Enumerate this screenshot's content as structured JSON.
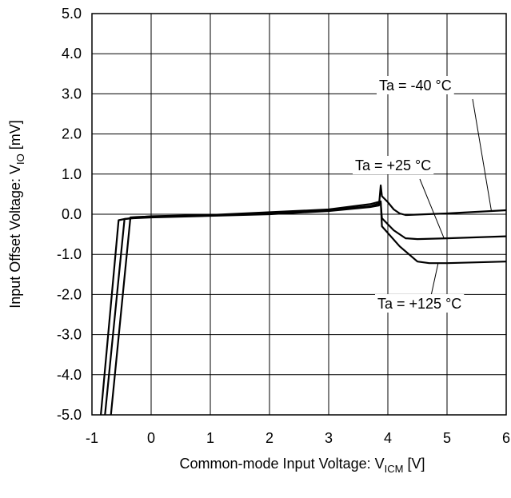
{
  "chart_data": {
    "type": "line",
    "title": "",
    "xlabel": {
      "main": "Common-mode Input Voltage: V",
      "sub": "ICM",
      "unit": " [V]"
    },
    "ylabel": {
      "main": "Input Offset Voltage: V",
      "sub": "IO",
      "unit": " [mV]"
    },
    "xlim": [
      -1,
      6
    ],
    "ylim": [
      -5,
      5
    ],
    "x_ticks": [
      -1,
      0,
      1,
      2,
      3,
      4,
      5,
      6
    ],
    "x_tick_labels": [
      "-1",
      "0",
      "1",
      "2",
      "3",
      "4",
      "5",
      "6"
    ],
    "y_ticks": [
      5,
      4,
      3,
      2,
      1,
      0,
      -1,
      -2,
      -3,
      -4,
      -5
    ],
    "y_tick_labels": [
      "5.0",
      "4.0",
      "3.0",
      "2.0",
      "1.0",
      "0.0",
      "-1.0",
      "-2.0",
      "-3.0",
      "-4.0",
      "-5.0"
    ],
    "grid": true,
    "series": [
      {
        "name": "Ta = -40 °C",
        "x": [
          -0.85,
          -0.55,
          -0.45,
          -0.3,
          0,
          1,
          2,
          3,
          3.7,
          3.85,
          3.88,
          3.9,
          4.0,
          4.1,
          4.2,
          4.3,
          5,
          6
        ],
        "y": [
          -5.0,
          -0.15,
          -0.12,
          -0.1,
          -0.08,
          -0.04,
          0.0,
          0.08,
          0.18,
          0.22,
          0.72,
          0.45,
          0.3,
          0.12,
          0.02,
          -0.02,
          0.02,
          0.1
        ]
      },
      {
        "name": "Ta = +25 °C",
        "x": [
          -0.78,
          -0.45,
          -0.35,
          -0.2,
          0,
          1,
          2,
          3,
          3.7,
          3.88,
          3.9,
          4.1,
          4.3,
          4.5,
          5,
          6
        ],
        "y": [
          -5.0,
          -0.12,
          -0.1,
          -0.08,
          -0.07,
          -0.03,
          0.02,
          0.1,
          0.2,
          0.28,
          -0.1,
          -0.4,
          -0.6,
          -0.62,
          -0.6,
          -0.55
        ]
      },
      {
        "name": "Ta = +125 °C",
        "x": [
          -0.68,
          -0.35,
          -0.25,
          -0.1,
          0,
          1,
          2,
          3,
          3.7,
          3.88,
          3.9,
          4.2,
          4.5,
          4.7,
          5,
          6
        ],
        "y": [
          -5.0,
          -0.08,
          -0.07,
          -0.06,
          -0.05,
          -0.02,
          0.05,
          0.12,
          0.25,
          0.32,
          -0.3,
          -0.8,
          -1.18,
          -1.22,
          -1.22,
          -1.18
        ]
      }
    ],
    "annotations": [
      {
        "text": "Ta = -40 °C",
        "series": 0,
        "at_x": 5.75
      },
      {
        "text": "Ta = +25 °C",
        "series": 1,
        "at_x": 4.95
      },
      {
        "text": "Ta = +125 °C",
        "series": 2,
        "at_x": 4.85
      }
    ]
  }
}
